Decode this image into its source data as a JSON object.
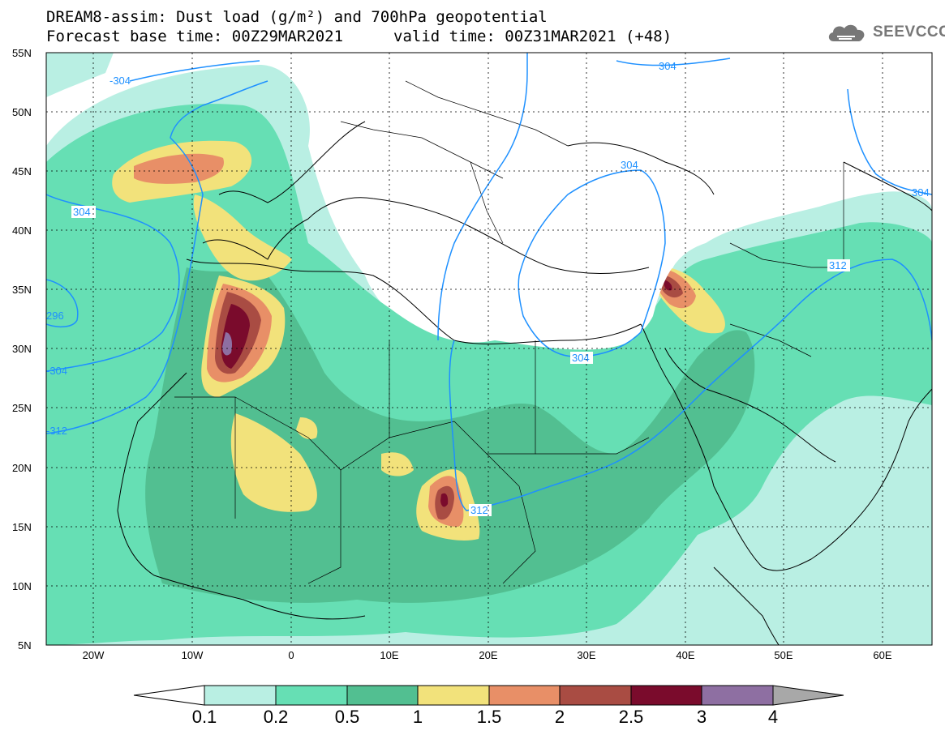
{
  "header": {
    "title_line1": "DREAM8-assim: Dust load (g/m²) and 700hPa geopotential",
    "title_line2a": "Forecast base time: 00Z29MAR2021",
    "title_line2b": "valid time: 00Z31MAR2021 (+48)"
  },
  "logo": {
    "text": "SEEVCCC",
    "icon": "cloud-logo-icon"
  },
  "map": {
    "lat_ticks": [
      "55N",
      "50N",
      "45N",
      "40N",
      "35N",
      "30N",
      "25N",
      "20N",
      "15N",
      "10N",
      "5N"
    ],
    "lon_ticks": [
      "20W",
      "10W",
      "0",
      "10E",
      "20E",
      "30E",
      "40E",
      "50E",
      "60E"
    ],
    "contour_labels": [
      "-304",
      "304",
      "296",
      "-304",
      "-312",
      "304",
      "304",
      "304",
      "312",
      "312",
      "304"
    ]
  },
  "colorbar": {
    "labels": [
      "0.1",
      "0.2",
      "0.5",
      "1",
      "1.5",
      "2",
      "2.5",
      "3",
      "4"
    ],
    "colors": [
      "#b9efe3",
      "#66dfb4",
      "#52bf91",
      "#f2e27b",
      "#e88f67",
      "#a94c43",
      "#7a0b2c",
      "#8e6fa2",
      "#a8a8a8"
    ]
  },
  "palette": {
    "dust_levels": [
      "#b9efe3",
      "#66dfb4",
      "#52bf91",
      "#f2e27b",
      "#e88f67",
      "#a94c43",
      "#7a0b2c",
      "#8e6fa2"
    ],
    "contour": "#1e90ff"
  }
}
